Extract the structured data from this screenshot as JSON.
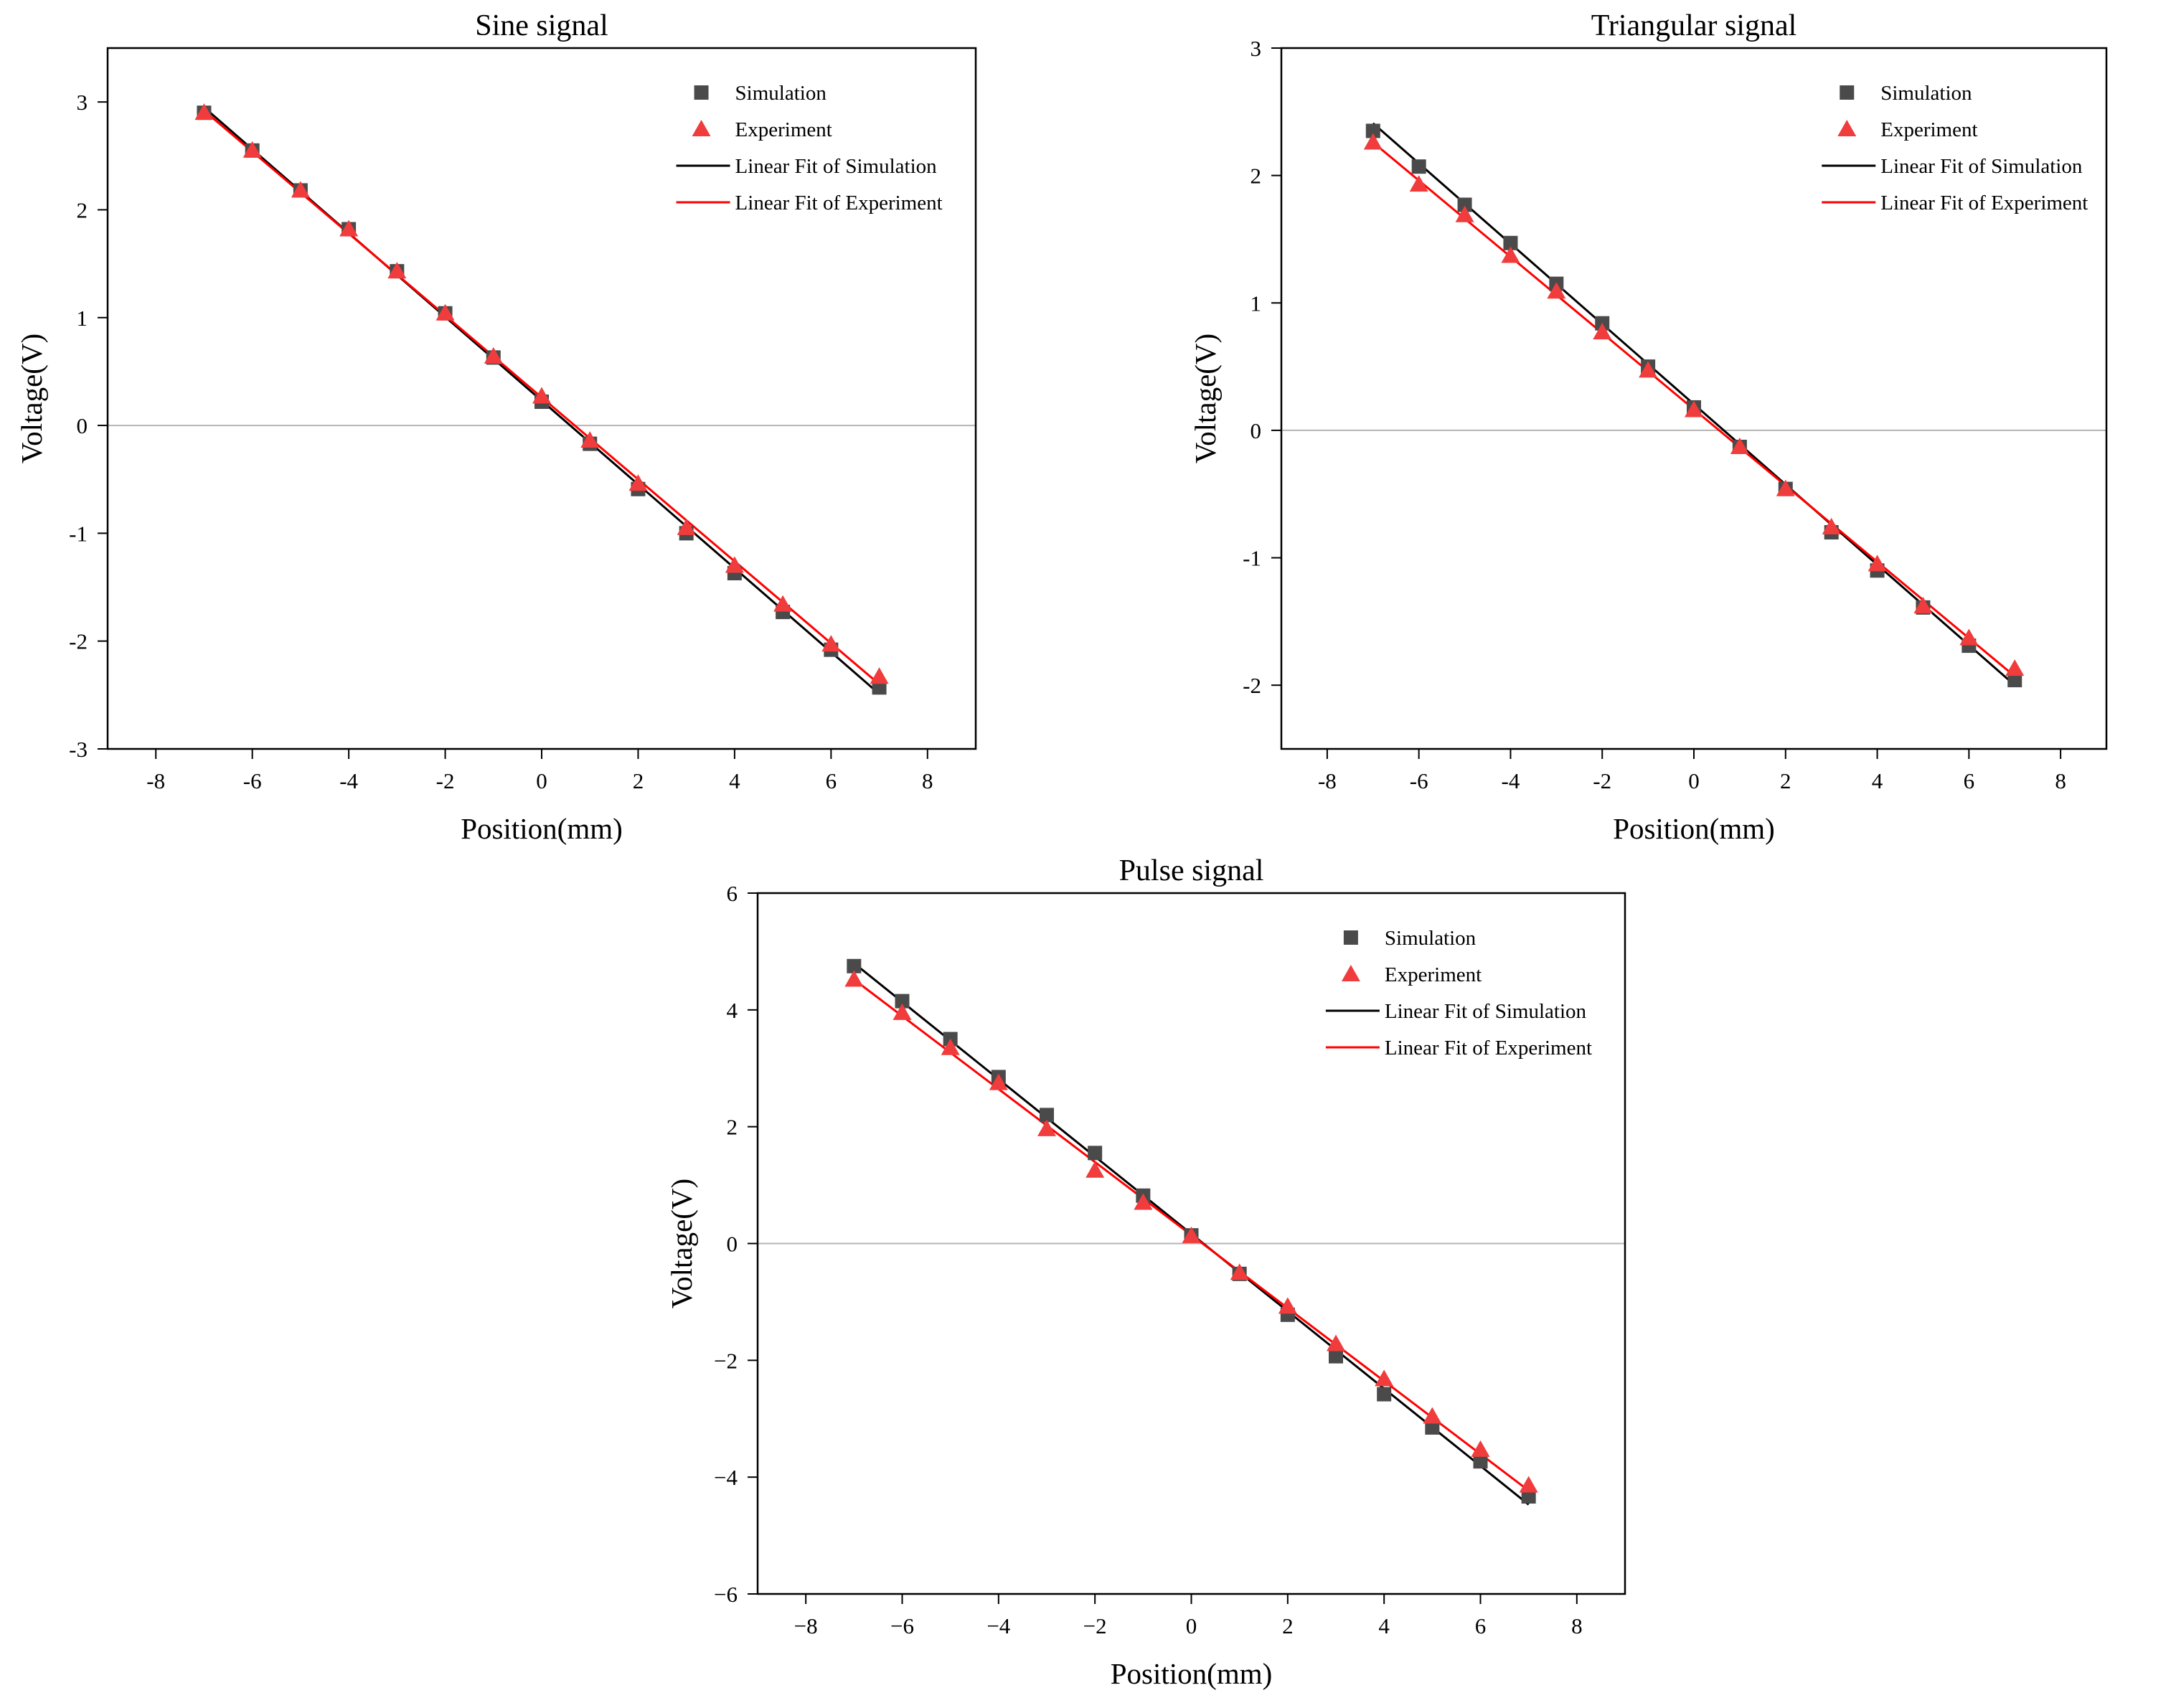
{
  "chart_data": [
    {
      "type": "scatter",
      "title": "Sine signal",
      "xlabel": "Position(mm)",
      "ylabel": "Voltage(V)",
      "xlim": [
        -9,
        9
      ],
      "ylim": [
        -3,
        3.5
      ],
      "xticks": [
        -8,
        -6,
        -4,
        -2,
        0,
        2,
        4,
        6,
        8
      ],
      "yticks": [
        -3,
        -2,
        -1,
        0,
        1,
        2,
        3
      ],
      "x": [
        -7,
        -6,
        -5,
        -4,
        -3,
        -2,
        -1,
        0,
        1,
        2,
        3,
        4,
        5,
        6,
        7
      ],
      "series": [
        {
          "name": "Simulation",
          "marker": "square",
          "color": "#4a4a4a",
          "values": [
            2.9,
            2.55,
            2.18,
            1.82,
            1.43,
            1.04,
            0.63,
            0.22,
            -0.17,
            -0.59,
            -1.0,
            -1.37,
            -1.73,
            -2.08,
            -2.43
          ]
        },
        {
          "name": "Experiment",
          "marker": "triangle",
          "color": "#f03c3c",
          "values": [
            2.9,
            2.55,
            2.18,
            1.82,
            1.43,
            1.04,
            0.64,
            0.27,
            -0.14,
            -0.54,
            -0.95,
            -1.3,
            -1.66,
            -2.03,
            -2.33
          ]
        }
      ],
      "fits": [
        {
          "name": "Linear Fit of Simulation",
          "color": "#000000",
          "start": [
            -7,
            2.95
          ],
          "end": [
            7,
            -2.49
          ]
        },
        {
          "name": "Linear Fit of Experiment",
          "color": "#ff0000",
          "start": [
            -7,
            2.92
          ],
          "end": [
            7,
            -2.4
          ]
        }
      ],
      "legend_position": "top-right"
    },
    {
      "type": "scatter",
      "title": "Triangular signal",
      "xlabel": "Position(mm)",
      "ylabel": "Voltage(V)",
      "xlim": [
        -9,
        9
      ],
      "ylim": [
        -2.5,
        3
      ],
      "xticks": [
        -8,
        -6,
        -4,
        -2,
        0,
        2,
        4,
        6,
        8
      ],
      "yticks": [
        -2,
        -1,
        0,
        1,
        2,
        3
      ],
      "x": [
        -7,
        -6,
        -5,
        -4,
        -3,
        -2,
        -1,
        0,
        1,
        2,
        3,
        4,
        5,
        6,
        7
      ],
      "series": [
        {
          "name": "Simulation",
          "marker": "square",
          "color": "#4a4a4a",
          "values": [
            2.35,
            2.07,
            1.77,
            1.47,
            1.15,
            0.84,
            0.5,
            0.18,
            -0.13,
            -0.46,
            -0.8,
            -1.1,
            -1.39,
            -1.69,
            -1.96
          ]
        },
        {
          "name": "Experiment",
          "marker": "triangle",
          "color": "#f03c3c",
          "values": [
            2.26,
            1.93,
            1.69,
            1.37,
            1.09,
            0.77,
            0.47,
            0.16,
            -0.13,
            -0.46,
            -0.76,
            -1.05,
            -1.38,
            -1.63,
            -1.87
          ]
        }
      ],
      "fits": [
        {
          "name": "Linear Fit of Simulation",
          "color": "#000000",
          "start": [
            -7,
            2.41
          ],
          "end": [
            7,
            -2.0
          ]
        },
        {
          "name": "Linear Fit of Experiment",
          "color": "#ff0000",
          "start": [
            -7,
            2.26
          ],
          "end": [
            7,
            -1.93
          ]
        }
      ],
      "legend_position": "top-right"
    },
    {
      "type": "scatter",
      "title": "Pulse signal",
      "xlabel": "Position(mm)",
      "ylabel": "Voltage(V)",
      "xlim": [
        -9,
        9
      ],
      "ylim": [
        -6,
        6
      ],
      "xticks": [
        -8,
        -6,
        -4,
        -2,
        0,
        2,
        4,
        6,
        8
      ],
      "yticks": [
        -6,
        -4,
        -2,
        0,
        2,
        4,
        6
      ],
      "x": [
        -7,
        -6,
        -5,
        -4,
        -3,
        -2,
        -1,
        0,
        1,
        2,
        3,
        4,
        5,
        6,
        7
      ],
      "series": [
        {
          "name": "Simulation",
          "marker": "square",
          "color": "#4a4a4a",
          "values": [
            4.75,
            4.15,
            3.5,
            2.85,
            2.2,
            1.55,
            0.82,
            0.14,
            -0.52,
            -1.22,
            -1.93,
            -2.58,
            -3.15,
            -3.73,
            -4.33
          ]
        },
        {
          "name": "Experiment",
          "marker": "triangle",
          "color": "#f03c3c",
          "values": [
            4.52,
            3.95,
            3.35,
            2.75,
            1.96,
            1.25,
            0.7,
            0.13,
            -0.5,
            -1.08,
            -1.72,
            -2.32,
            -2.96,
            -3.53,
            -4.14
          ]
        }
      ],
      "fits": [
        {
          "name": "Linear Fit of Simulation",
          "color": "#000000",
          "start": [
            -7,
            4.8
          ],
          "end": [
            7,
            -4.47
          ]
        },
        {
          "name": "Linear Fit of Experiment",
          "color": "#ff0000",
          "start": [
            -7,
            4.52
          ],
          "end": [
            7,
            -4.23
          ]
        }
      ],
      "legend_position": "top-right"
    }
  ]
}
